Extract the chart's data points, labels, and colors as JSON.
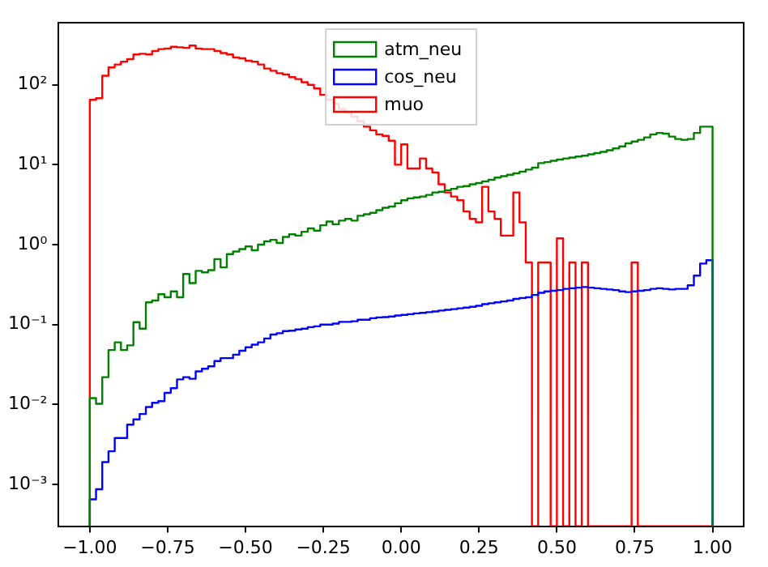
{
  "chart_data": {
    "type": "histogram",
    "log": "y",
    "grid": false,
    "legend": "top",
    "line_style": "solid",
    "bins": [
      -1,
      -0.98,
      -0.96,
      -0.94,
      -0.92,
      -0.9,
      -0.88,
      -0.86,
      -0.84,
      -0.82,
      -0.8,
      -0.78,
      -0.76,
      -0.74,
      -0.72,
      -0.7,
      -0.68,
      -0.66,
      -0.64,
      -0.62,
      -0.6,
      -0.58,
      -0.56,
      -0.54,
      -0.52,
      -0.5,
      -0.48,
      -0.46,
      -0.44,
      -0.42,
      -0.4,
      -0.38,
      -0.36,
      -0.34,
      -0.32,
      -0.3,
      -0.28,
      -0.26,
      -0.24,
      -0.22,
      -0.2,
      -0.18,
      -0.16,
      -0.14,
      -0.12,
      -0.1,
      -0.08,
      -0.06,
      -0.04,
      -0.02,
      0,
      0.02,
      0.04,
      0.06,
      0.08,
      0.1,
      0.12,
      0.14,
      0.16,
      0.18,
      0.2,
      0.22,
      0.24,
      0.26,
      0.28,
      0.3,
      0.32,
      0.34,
      0.36,
      0.38,
      0.4,
      0.42,
      0.44,
      0.46,
      0.48,
      0.5,
      0.52,
      0.54,
      0.56,
      0.58,
      0.6,
      0.62,
      0.64,
      0.66,
      0.68,
      0.7,
      0.72,
      0.74,
      0.76,
      0.78,
      0.8,
      0.82,
      0.84,
      0.86,
      0.88,
      0.9,
      0.92,
      0.94,
      0.96,
      0.98,
      1
    ],
    "series": [
      {
        "name": "atm_neu",
        "color": "#008000",
        "values": [
          0.012,
          0.0102,
          0.022,
          0.048,
          0.06,
          0.048,
          0.055,
          0.107,
          0.089,
          0.19,
          0.2,
          0.24,
          0.22,
          0.26,
          0.22,
          0.43,
          0.33,
          0.47,
          0.45,
          0.48,
          0.66,
          0.52,
          0.76,
          0.82,
          0.88,
          0.95,
          0.85,
          1.0,
          1.1,
          1.15,
          1.05,
          1.25,
          1.35,
          1.3,
          1.45,
          1.6,
          1.5,
          1.75,
          1.95,
          1.8,
          2.0,
          2.1,
          2.0,
          2.3,
          2.4,
          2.5,
          2.7,
          2.9,
          3.0,
          3.3,
          3.6,
          3.8,
          3.9,
          4.0,
          4.2,
          4.5,
          4.6,
          4.8,
          5.0,
          5.3,
          5.4,
          5.7,
          5.9,
          6.2,
          6.5,
          6.9,
          7.2,
          7.5,
          7.8,
          8.2,
          8.7,
          9.2,
          10.5,
          10.8,
          11.2,
          11.6,
          12,
          12.3,
          12.7,
          13,
          13.5,
          14,
          14.5,
          15.2,
          16,
          17,
          18.5,
          19.5,
          20.5,
          22,
          24,
          25,
          24.5,
          22.5,
          21,
          20.5,
          21,
          25,
          30,
          30
        ]
      },
      {
        "name": "cos_neu",
        "color": "#0000ff",
        "values": [
          0.00065,
          0.00087,
          0.0019,
          0.0026,
          0.0038,
          0.0038,
          0.0056,
          0.0065,
          0.0076,
          0.0093,
          0.0105,
          0.011,
          0.014,
          0.016,
          0.0206,
          0.022,
          0.021,
          0.026,
          0.028,
          0.03,
          0.035,
          0.038,
          0.038,
          0.042,
          0.047,
          0.052,
          0.056,
          0.06,
          0.067,
          0.075,
          0.078,
          0.083,
          0.084,
          0.087,
          0.089,
          0.093,
          0.095,
          0.1,
          0.1,
          0.103,
          0.108,
          0.108,
          0.11,
          0.115,
          0.115,
          0.12,
          0.123,
          0.124,
          0.126,
          0.13,
          0.132,
          0.135,
          0.138,
          0.14,
          0.143,
          0.146,
          0.15,
          0.153,
          0.156,
          0.16,
          0.163,
          0.167,
          0.172,
          0.18,
          0.185,
          0.19,
          0.195,
          0.2,
          0.21,
          0.215,
          0.22,
          0.235,
          0.25,
          0.26,
          0.265,
          0.27,
          0.28,
          0.285,
          0.29,
          0.295,
          0.29,
          0.285,
          0.28,
          0.275,
          0.27,
          0.26,
          0.255,
          0.26,
          0.265,
          0.27,
          0.28,
          0.285,
          0.28,
          0.275,
          0.28,
          0.28,
          0.31,
          0.41,
          0.58,
          0.64
        ]
      },
      {
        "name": "muo",
        "color": "#ff0000",
        "values": [
          65,
          68,
          130,
          165,
          180,
          195,
          210,
          240,
          245,
          240,
          265,
          280,
          285,
          300,
          295,
          290,
          310,
          285,
          280,
          280,
          265,
          250,
          240,
          220,
          215,
          200,
          195,
          180,
          160,
          150,
          140,
          135,
          125,
          118,
          108,
          100,
          90,
          75,
          65,
          58,
          50,
          45,
          40,
          35,
          30,
          27,
          24,
          23,
          20,
          10,
          18,
          9,
          9,
          12,
          9,
          8,
          5.7,
          4.5,
          4,
          3.6,
          2.6,
          2.1,
          1.9,
          5.3,
          2.6,
          2.1,
          1.3,
          1.3,
          4.5,
          1.9,
          0.6,
          null,
          0.6,
          0.6,
          null,
          1.2,
          null,
          0.6,
          null,
          0.6,
          null,
          null,
          null,
          null,
          null,
          null,
          null,
          0.6,
          null,
          null,
          null,
          null,
          null,
          null,
          null,
          null,
          null,
          null,
          null,
          null
        ]
      }
    ],
    "xlim": [
      -1.1,
      1.1
    ],
    "xticks": [
      {
        "value": -1,
        "label": "−1.00"
      },
      {
        "value": -0.75,
        "label": "−0.75"
      },
      {
        "value": -0.5,
        "label": "−0.50"
      },
      {
        "value": -0.25,
        "label": "−0.25"
      },
      {
        "value": 0,
        "label": "0.00"
      },
      {
        "value": 0.25,
        "label": "0.25"
      },
      {
        "value": 0.5,
        "label": "0.50"
      },
      {
        "value": 0.75,
        "label": "0.75"
      },
      {
        "value": 1,
        "label": "1.00"
      }
    ],
    "ylim": [
      0.0003,
      600
    ],
    "yticks": [
      {
        "value": 0.001,
        "label": "10⁻³"
      },
      {
        "value": 0.01,
        "label": "10⁻²"
      },
      {
        "value": 0.1,
        "label": "10⁻¹"
      },
      {
        "value": 1,
        "label": "10⁰"
      },
      {
        "value": 10,
        "label": "10¹"
      },
      {
        "value": 100,
        "label": "10²"
      }
    ]
  }
}
